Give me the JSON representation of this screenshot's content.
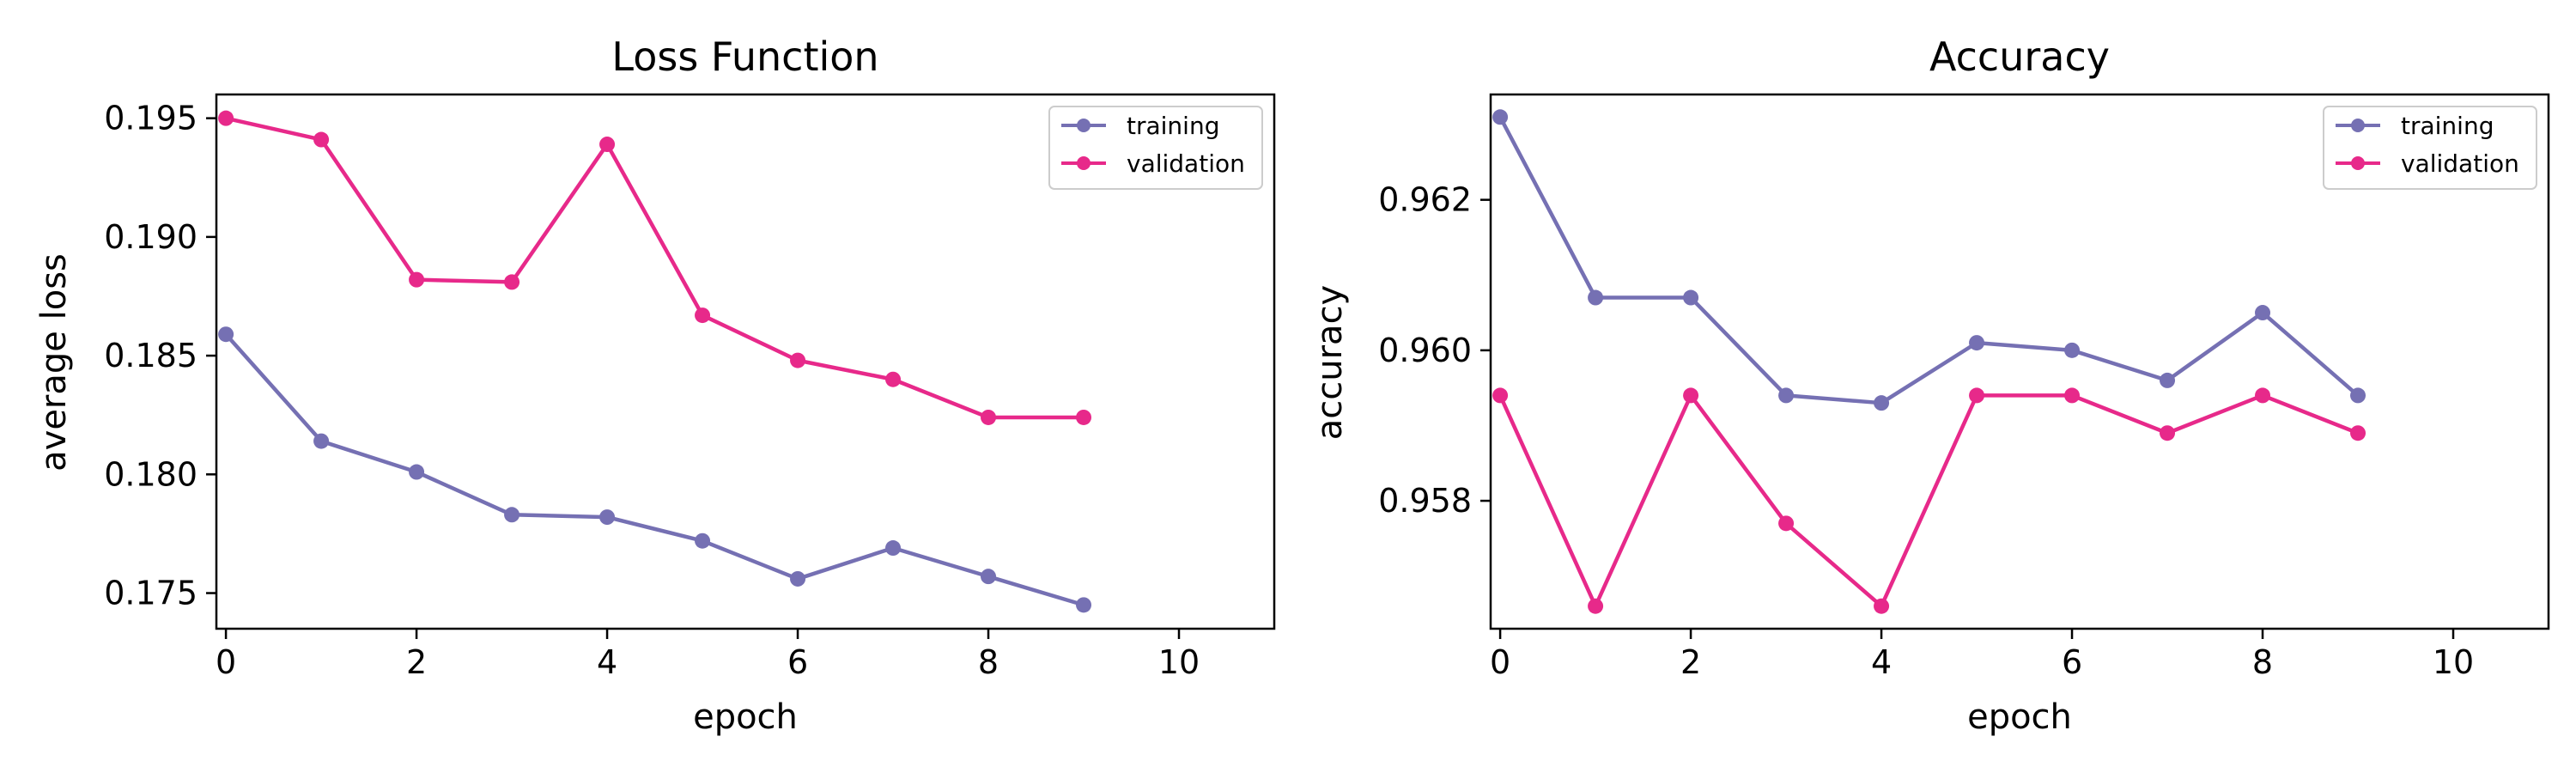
{
  "colors": {
    "training": "#7570b3",
    "validation": "#e7298a"
  },
  "chart_data": [
    {
      "type": "line",
      "title": "Loss Function",
      "xlabel": "epoch",
      "ylabel": "average loss",
      "x": [
        0,
        1,
        2,
        3,
        4,
        5,
        6,
        7,
        8,
        9
      ],
      "xlim": [
        -0.1,
        11
      ],
      "ylim": [
        0.1735,
        0.196
      ],
      "xticks": [
        0,
        2,
        4,
        6,
        8,
        10
      ],
      "yticks": [
        0.175,
        0.18,
        0.185,
        0.19,
        0.195
      ],
      "ytick_labels": [
        "0.175",
        "0.180",
        "0.185",
        "0.190",
        "0.195"
      ],
      "legend_position": "top-right",
      "grid": false,
      "series": [
        {
          "name": "training",
          "values": [
            0.1859,
            0.1814,
            0.1801,
            0.1783,
            0.1782,
            0.1772,
            0.1756,
            0.1769,
            0.1757,
            0.1745
          ]
        },
        {
          "name": "validation",
          "values": [
            0.195,
            0.1941,
            0.1882,
            0.1881,
            0.1939,
            0.1867,
            0.1848,
            0.184,
            0.1824,
            0.1824
          ]
        }
      ]
    },
    {
      "type": "line",
      "title": "Accuracy",
      "xlabel": "epoch",
      "ylabel": "accuracy",
      "x": [
        0,
        1,
        2,
        3,
        4,
        5,
        6,
        7,
        8,
        9
      ],
      "xlim": [
        -0.1,
        11
      ],
      "ylim": [
        0.9563,
        0.9634
      ],
      "xticks": [
        0,
        2,
        4,
        6,
        8,
        10
      ],
      "yticks": [
        0.958,
        0.96,
        0.962
      ],
      "ytick_labels": [
        "0.958",
        "0.960",
        "0.962"
      ],
      "legend_position": "top-right",
      "grid": false,
      "series": [
        {
          "name": "training",
          "values": [
            0.9631,
            0.9607,
            0.9607,
            0.9594,
            0.9593,
            0.9601,
            0.96,
            0.9596,
            0.9605,
            0.9594
          ]
        },
        {
          "name": "validation",
          "values": [
            0.9594,
            0.9566,
            0.9594,
            0.9577,
            0.9566,
            0.9594,
            0.9594,
            0.9589,
            0.9594,
            0.9589
          ]
        }
      ]
    }
  ]
}
